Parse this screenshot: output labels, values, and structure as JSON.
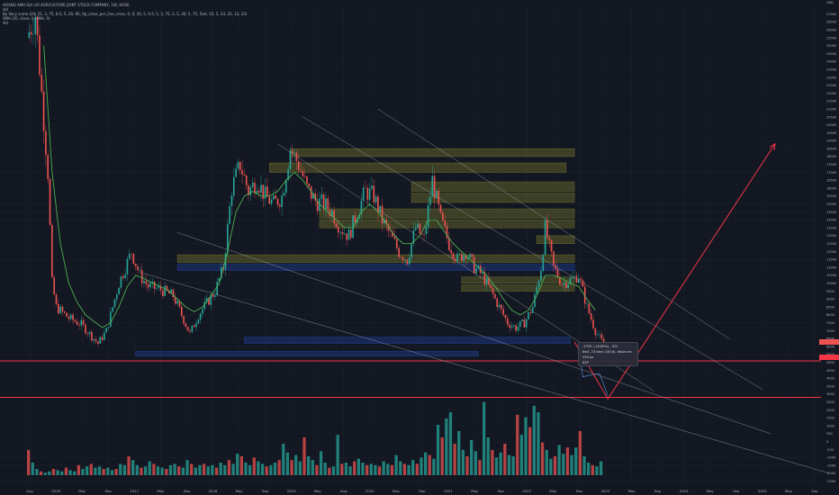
{
  "legend": {
    "symbol_line": "HOANG ANH GIA LAI AGRICULTURE JOINT STOCK COMPANY, 1W, HOSE",
    "line2": "Vol",
    "line3": "By Vacy cumo (20, 25, 3, 75, 8.5, 5, 20, 85, 0p_cross_per_line_cross, 0, 0, 30, 5, 0.5, 5, 3, 75, 2, 5, 30, 5, 75, Fast, 25, 5, 24, 25, 13, 23)",
    "line4": "SMA (20, close, 0, SMA, 9)",
    "line5": "Vol"
  },
  "tooltip": {
    "line1": "-3799 (-16.89%), -551",
    "line2": "8w4, 23 bars (161d), distance: 299 px",
    "line3": "62P"
  },
  "colors": {
    "background": "#131722",
    "up": "#26a69a",
    "down": "#ef5350",
    "sma": "#4caf50",
    "trend": "#b2b5be",
    "horizontal_line": "#f23645",
    "projection": "#f23645",
    "zone_yellow": "#a8a832",
    "zone_blue": "#2962ff"
  },
  "chart_data": {
    "type": "candlestick",
    "xlabel": "",
    "ylabel": "",
    "x_ticks": [
      "Aug",
      "2016",
      "May",
      "Sep",
      "2017",
      "May",
      "Sep",
      "2018",
      "May",
      "Sep",
      "2019",
      "May",
      "Aug",
      "2020",
      "May",
      "Sep",
      "2021",
      "May",
      "Sep",
      "2022",
      "May",
      "Sep",
      "2023",
      "May",
      "Sep",
      "2024",
      "May",
      "Sep",
      "2025",
      "May",
      "Sep"
    ],
    "price_axis_ticks": [
      "27000",
      "26500",
      "26000",
      "25500",
      "25000",
      "24500",
      "24000",
      "23500",
      "23000",
      "22500",
      "22000",
      "21500",
      "21000",
      "20500",
      "20000",
      "19500",
      "19000",
      "18500",
      "18000",
      "17500",
      "17000",
      "16500",
      "16000",
      "15500",
      "15000",
      "14500",
      "14000",
      "13500",
      "13000",
      "12500",
      "12000",
      "11500",
      "11000",
      "10500",
      "10000",
      "9500",
      "9000",
      "8500",
      "8000",
      "7500",
      "7000",
      "6500",
      "6000",
      "5500",
      "5000",
      "4500",
      "4000",
      "3500",
      "3000",
      "2500",
      "2000",
      "1500",
      "1000",
      "500",
      "0",
      "-500",
      "-1000",
      "-1500",
      "-2000",
      "-2500"
    ],
    "axis_labels": {
      "price_unit": "VND"
    },
    "ylim": [
      -2800,
      27600
    ],
    "price_path_points": [
      [
        0,
        25500
      ],
      [
        2,
        27000
      ],
      [
        5,
        17000
      ],
      [
        6,
        10000
      ],
      [
        7,
        8500
      ],
      [
        10,
        7800
      ],
      [
        13,
        7400
      ],
      [
        15,
        6800
      ],
      [
        17,
        6200
      ],
      [
        19,
        7000
      ],
      [
        22,
        10000
      ],
      [
        25,
        12000
      ],
      [
        27,
        10500
      ],
      [
        29,
        9800
      ],
      [
        32,
        9600
      ],
      [
        35,
        9200
      ],
      [
        37,
        8000
      ],
      [
        39,
        6800
      ],
      [
        41,
        8000
      ],
      [
        45,
        9500
      ],
      [
        47,
        11000
      ],
      [
        49,
        16000
      ],
      [
        51,
        17500
      ],
      [
        53,
        15800
      ],
      [
        55,
        16500
      ],
      [
        57,
        15500
      ],
      [
        59,
        15000
      ],
      [
        61,
        15500
      ],
      [
        63,
        18500
      ],
      [
        65,
        17500
      ],
      [
        67,
        16000
      ],
      [
        69,
        15200
      ],
      [
        71,
        15000
      ],
      [
        73,
        14500
      ],
      [
        75,
        13500
      ],
      [
        77,
        13000
      ],
      [
        79,
        14500
      ],
      [
        81,
        15800
      ],
      [
        83,
        15500
      ],
      [
        85,
        14000
      ],
      [
        87,
        13000
      ],
      [
        89,
        12000
      ],
      [
        91,
        11500
      ],
      [
        93,
        13500
      ],
      [
        95,
        12800
      ],
      [
        97,
        16500
      ],
      [
        99,
        14000
      ],
      [
        101,
        12500
      ],
      [
        103,
        11500
      ],
      [
        105,
        12000
      ],
      [
        107,
        11000
      ],
      [
        109,
        10500
      ],
      [
        111,
        9500
      ],
      [
        113,
        8500
      ],
      [
        115,
        7500
      ],
      [
        117,
        7200
      ],
      [
        119,
        7500
      ],
      [
        121,
        8500
      ],
      [
        123,
        11000
      ],
      [
        124,
        13500
      ],
      [
        126,
        11000
      ],
      [
        128,
        10000
      ],
      [
        130,
        10200
      ],
      [
        132,
        10500
      ],
      [
        134,
        8500
      ],
      [
        136,
        7000
      ],
      [
        138,
        6100
      ]
    ],
    "sma_points": [
      [
        4,
        25000
      ],
      [
        6,
        17000
      ],
      [
        8,
        12500
      ],
      [
        10,
        10000
      ],
      [
        12,
        8800
      ],
      [
        14,
        8000
      ],
      [
        16,
        7600
      ],
      [
        18,
        7200
      ],
      [
        20,
        7500
      ],
      [
        22,
        8500
      ],
      [
        24,
        9800
      ],
      [
        26,
        10500
      ],
      [
        28,
        10300
      ],
      [
        30,
        10000
      ],
      [
        32,
        9800
      ],
      [
        34,
        9500
      ],
      [
        36,
        9000
      ],
      [
        38,
        8500
      ],
      [
        40,
        8200
      ],
      [
        42,
        8500
      ],
      [
        44,
        9200
      ],
      [
        46,
        10000
      ],
      [
        48,
        12000
      ],
      [
        50,
        14500
      ],
      [
        52,
        15500
      ],
      [
        54,
        15800
      ],
      [
        56,
        15500
      ],
      [
        58,
        15500
      ],
      [
        60,
        15800
      ],
      [
        62,
        16500
      ],
      [
        64,
        17000
      ],
      [
        66,
        16500
      ],
      [
        68,
        15800
      ],
      [
        70,
        15000
      ],
      [
        72,
        14500
      ],
      [
        74,
        14000
      ],
      [
        76,
        13500
      ],
      [
        78,
        13500
      ],
      [
        80,
        14500
      ],
      [
        82,
        15000
      ],
      [
        84,
        14500
      ],
      [
        86,
        13800
      ],
      [
        88,
        13000
      ],
      [
        90,
        12500
      ],
      [
        92,
        12500
      ],
      [
        94,
        13000
      ],
      [
        96,
        14000
      ],
      [
        98,
        14000
      ],
      [
        100,
        13200
      ],
      [
        102,
        12500
      ],
      [
        104,
        12000
      ],
      [
        106,
        11500
      ],
      [
        108,
        11000
      ],
      [
        110,
        10500
      ],
      [
        112,
        9800
      ],
      [
        114,
        9000
      ],
      [
        116,
        8300
      ],
      [
        118,
        8000
      ],
      [
        120,
        8300
      ],
      [
        122,
        9200
      ],
      [
        124,
        10500
      ],
      [
        126,
        10500
      ],
      [
        128,
        10300
      ],
      [
        130,
        10000
      ],
      [
        132,
        9800
      ],
      [
        134,
        9000
      ],
      [
        136,
        8300
      ]
    ],
    "x_range": [
      0,
      190
    ],
    "zones": [
      {
        "x0": 63,
        "x1": 131,
        "y0": 18500,
        "y1": 18000,
        "color": "yellow"
      },
      {
        "x0": 58,
        "x1": 129,
        "y0": 17600,
        "y1": 17000,
        "color": "yellow"
      },
      {
        "x0": 92,
        "x1": 131,
        "y0": 16400,
        "y1": 15800,
        "color": "yellow"
      },
      {
        "x0": 92,
        "x1": 131,
        "y0": 15700,
        "y1": 15100,
        "color": "yellow"
      },
      {
        "x0": 70,
        "x1": 131,
        "y0": 14700,
        "y1": 14100,
        "color": "yellow"
      },
      {
        "x0": 70,
        "x1": 131,
        "y0": 14000,
        "y1": 13500,
        "color": "yellow"
      },
      {
        "x0": 122,
        "x1": 131,
        "y0": 13000,
        "y1": 12500,
        "color": "yellow"
      },
      {
        "x0": 36,
        "x1": 131,
        "y0": 11800,
        "y1": 11300,
        "color": "yellow"
      },
      {
        "x0": 36,
        "x1": 131,
        "y0": 11200,
        "y1": 10800,
        "color": "blue"
      },
      {
        "x0": 104,
        "x1": 131,
        "y0": 10400,
        "y1": 10000,
        "color": "yellow"
      },
      {
        "x0": 104,
        "x1": 131,
        "y0": 9900,
        "y1": 9500,
        "color": "yellow"
      },
      {
        "x0": 52,
        "x1": 130,
        "y0": 6600,
        "y1": 6200,
        "color": "blue"
      },
      {
        "x0": 26,
        "x1": 108,
        "y0": 5700,
        "y1": 5400,
        "color": "blue"
      }
    ],
    "horizontal_lines": [
      5100,
      2800
    ],
    "trend_lines": [
      {
        "from": [
          66,
          20500
        ],
        "to": [
          176,
          3300
        ]
      },
      {
        "from": [
          84,
          21000
        ],
        "to": [
          168,
          6500
        ]
      },
      {
        "from": [
          60,
          18800
        ],
        "to": [
          150,
          3200
        ]
      },
      {
        "from": [
          36,
          13200
        ],
        "to": [
          178,
          500
        ]
      },
      {
        "from": [
          27,
          10700
        ],
        "to": [
          192,
          -2000
        ]
      }
    ],
    "projection": [
      [
        131,
        6300
      ],
      [
        139,
        2700
      ],
      [
        179,
        18800
      ]
    ],
    "blue_path": [
      [
        132,
        6200
      ],
      [
        133,
        4100
      ],
      [
        137,
        4300
      ],
      [
        139,
        2900
      ]
    ],
    "volume_bars": [
      2,
      1,
      0.5,
      0.3,
      0.2,
      0.3,
      0.5,
      0.4,
      0.3,
      0.6,
      0.4,
      0.3,
      0.8,
      0.5,
      0.7,
      0.9,
      0.6,
      0.7,
      0.5,
      0.6,
      0.4,
      0.5,
      0.9,
      0.8,
      1.5,
      1.2,
      0.8,
      0.6,
      0.7,
      1.1,
      0.9,
      0.7,
      0.6,
      0.5,
      0.8,
      0.9,
      0.7,
      0.6,
      1.2,
      0.9,
      0.6,
      0.8,
      0.9,
      0.7,
      0.8,
      0.6,
      1.0,
      0.8,
      1.2,
      0.9,
      1.7,
      1.5,
      1.0,
      0.8,
      1.4,
      1.1,
      0.9,
      0.7,
      0.8,
      1.0,
      1.2,
      2.5,
      1.8,
      1.2,
      1.6,
      1.1,
      3.0,
      1.5,
      1.2,
      0.8,
      1.9,
      1.0,
      0.6,
      0.7,
      3.2,
      0.9,
      1.0,
      0.7,
      1.1,
      1.3,
      1.0,
      0.8,
      0.9,
      0.8,
      0.7,
      1.1,
      0.9,
      0.8,
      1.6,
      1.1,
      0.9,
      0.8,
      1.2,
      0.9,
      1.4,
      1.8,
      1.6,
      1.3,
      4.0,
      3.0,
      4.5,
      5.0,
      2.5,
      3.5,
      2.0,
      1.5,
      2.8,
      1.9,
      1.2,
      5.8,
      3.0,
      2.0,
      1.4,
      1.8,
      2.5,
      1.6,
      1.5,
      4.8,
      3.2,
      4.6,
      3.8,
      5.5,
      5.0,
      2.6,
      2.0,
      1.3,
      1.5,
      2.4,
      1.7,
      2.2,
      1.6,
      2.2,
      3.5,
      1.5,
      1.0,
      0.8,
      0.7,
      1.1
    ]
  }
}
